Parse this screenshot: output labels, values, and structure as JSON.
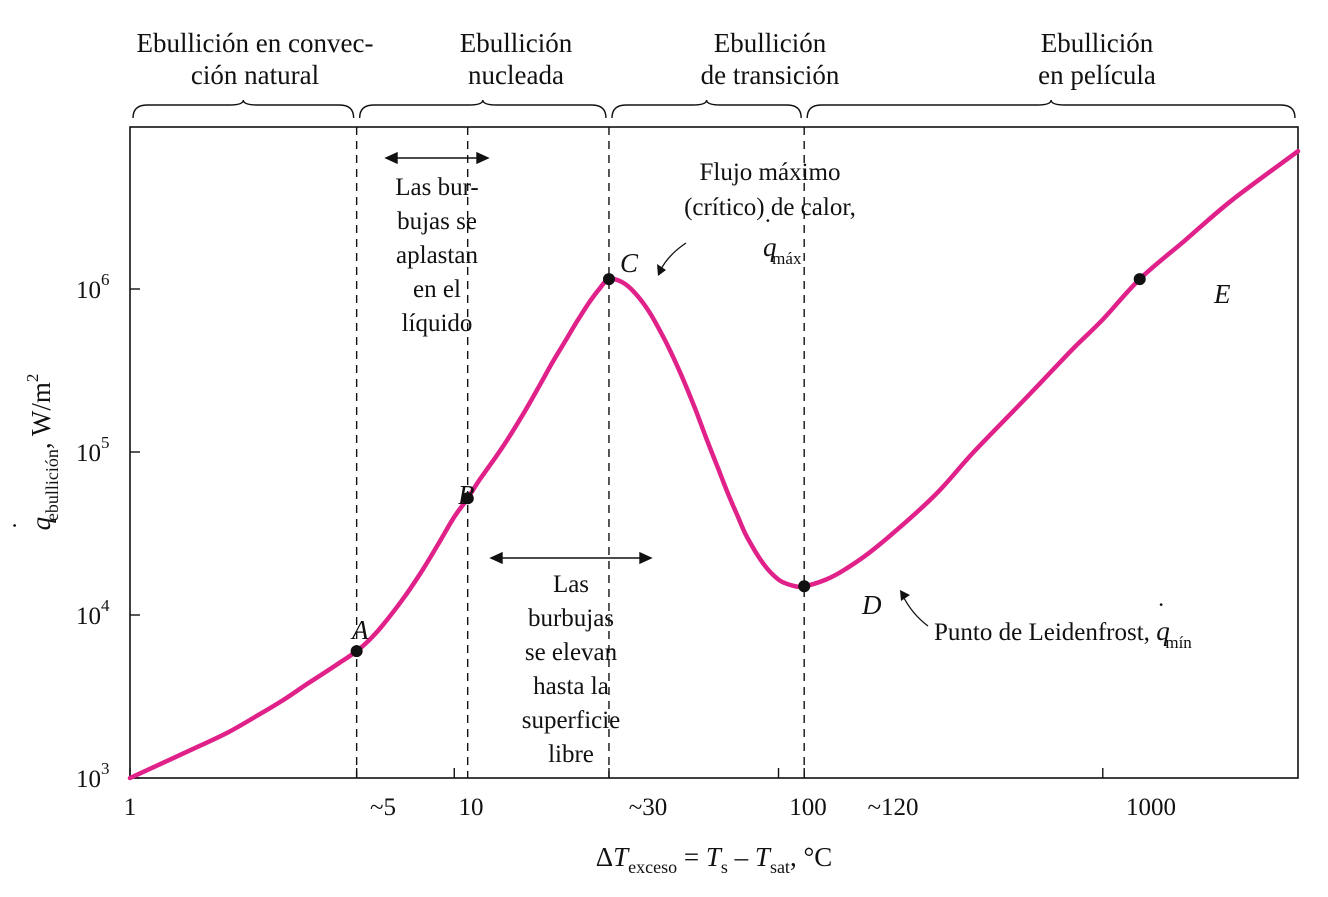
{
  "chart_data": {
    "type": "line",
    "x_scale": "log",
    "y_scale": "log",
    "xlim": [
      1,
      4000
    ],
    "ylim": [
      1000,
      10000000
    ],
    "xlabel": {
      "delta": "Δ",
      "T1": "T",
      "sub1": "exceso",
      "eq": " = ",
      "T2": "T",
      "sub2": "s",
      "minus": " – ",
      "T3": "T",
      "sub3": "sat",
      "unit": ", °C"
    },
    "ylabel": {
      "q": "q",
      "dot": "˙",
      "sub": "ebullición",
      "unit": ", W/m",
      "sup": "2"
    },
    "x_ticks": [
      {
        "value": 1,
        "label": "1"
      },
      {
        "value": 5,
        "label": "~5"
      },
      {
        "value": 10,
        "label": "10"
      },
      {
        "value": 30,
        "label": "~30"
      },
      {
        "value": 100,
        "label": "100"
      },
      {
        "value": 120,
        "label": "~120"
      },
      {
        "value": 1000,
        "label": "1000"
      }
    ],
    "y_ticks": [
      {
        "value": 1000,
        "base": "10",
        "exp": "3"
      },
      {
        "value": 10000,
        "base": "10",
        "exp": "4"
      },
      {
        "value": 100000,
        "base": "10",
        "exp": "5"
      },
      {
        "value": 1000000,
        "base": "10",
        "exp": "6"
      }
    ],
    "regions": [
      {
        "lines": [
          "Ebullición en convec-",
          "ción natural"
        ],
        "x_from": 1,
        "x_to": 5
      },
      {
        "lines": [
          "Ebullición",
          "nucleada"
        ],
        "x_from": 5,
        "x_to": 30
      },
      {
        "lines": [
          "Ebullición",
          "de transición"
        ],
        "x_from": 30,
        "x_to": 120
      },
      {
        "lines": [
          "Ebullición",
          "en película"
        ],
        "x_from": 120,
        "x_to": 4000
      }
    ],
    "dashed_lines_x": [
      5,
      11,
      30,
      120
    ],
    "series": [
      {
        "color": "#e0218a",
        "x": [
          1,
          1.5,
          2,
          2.5,
          3,
          3.5,
          4,
          4.5,
          5,
          5.5,
          6,
          7,
          8,
          9,
          10,
          11,
          12,
          14,
          16,
          18,
          20,
          22,
          24,
          26,
          28,
          30,
          33,
          36,
          40,
          45,
          50,
          55,
          60,
          65,
          70,
          75,
          80,
          90,
          100,
          110,
          120,
          140,
          160,
          200,
          300,
          400,
          600,
          800,
          1000,
          1300,
          1800,
          2500,
          4000
        ],
        "y": [
          1000,
          1450,
          1900,
          2450,
          3050,
          3750,
          4450,
          5200,
          6000,
          7100,
          8600,
          12800,
          19000,
          28000,
          40000,
          52000,
          68000,
          105000,
          160000,
          240000,
          350000,
          480000,
          640000,
          820000,
          1000000,
          1150000,
          1100000,
          950000,
          720000,
          470000,
          300000,
          190000,
          120000,
          80000,
          55000,
          40000,
          30000,
          20500,
          16500,
          15200,
          15000,
          16500,
          19000,
          26000,
          53000,
          100000,
          230000,
          420000,
          650000,
          1150000,
          2000000,
          3500000,
          7000000
        ]
      }
    ],
    "points": [
      {
        "label": "A",
        "x": 5,
        "y": 6000
      },
      {
        "label": "B",
        "x": 11,
        "y": 52000
      },
      {
        "label": "C",
        "x": 30,
        "y": 1150000
      },
      {
        "label": "D",
        "x": 120,
        "y": 15000
      },
      {
        "label": "E",
        "x": 1300,
        "y": 1150000
      }
    ],
    "annotations": {
      "flatten": [
        "Las bur-",
        "bujas se",
        "aplastan",
        "en el",
        "líquido"
      ],
      "rise": [
        "Las",
        "burbujas",
        "se elevan",
        "hasta la",
        "superficie",
        "libre"
      ],
      "max_flux": {
        "line1": "Flujo máximo",
        "line2": "(crítico) de calor,",
        "q": "q",
        "dot": "˙",
        "sub": "máx"
      },
      "leidenfrost": {
        "text": "Punto de Leidenfrost, ",
        "q": "q",
        "dot": "˙",
        "sub": "mín"
      }
    }
  }
}
